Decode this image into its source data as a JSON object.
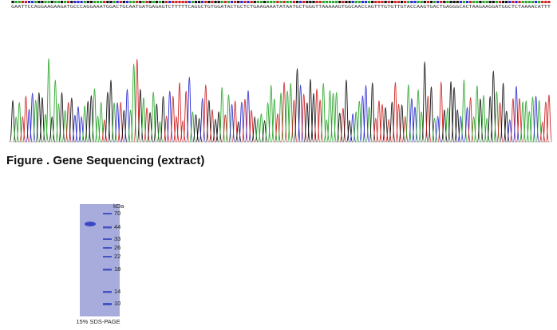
{
  "sequence": "GAATTCCAGGAAGAAGATGCCCAGGAAATGGACTGCAATGATGAGAGTCTTTTTCAGGCTGTGGATACTGCTCTGAAGAAATATAATGCTGGGTTAAAAAGTGGCAACCAGTTTGTGTTGTACCAAGTGACTGAGGGCACTAAGAAGGATGGCTCTAAAACATTT",
  "figure_caption": "Figure . Gene Sequencing (extract)",
  "gel": {
    "unit": "kDa",
    "markers": [
      "70",
      "44",
      "33",
      "26",
      "22",
      "18",
      "14",
      "10"
    ],
    "caption": "15% SDS-PAGE"
  }
}
